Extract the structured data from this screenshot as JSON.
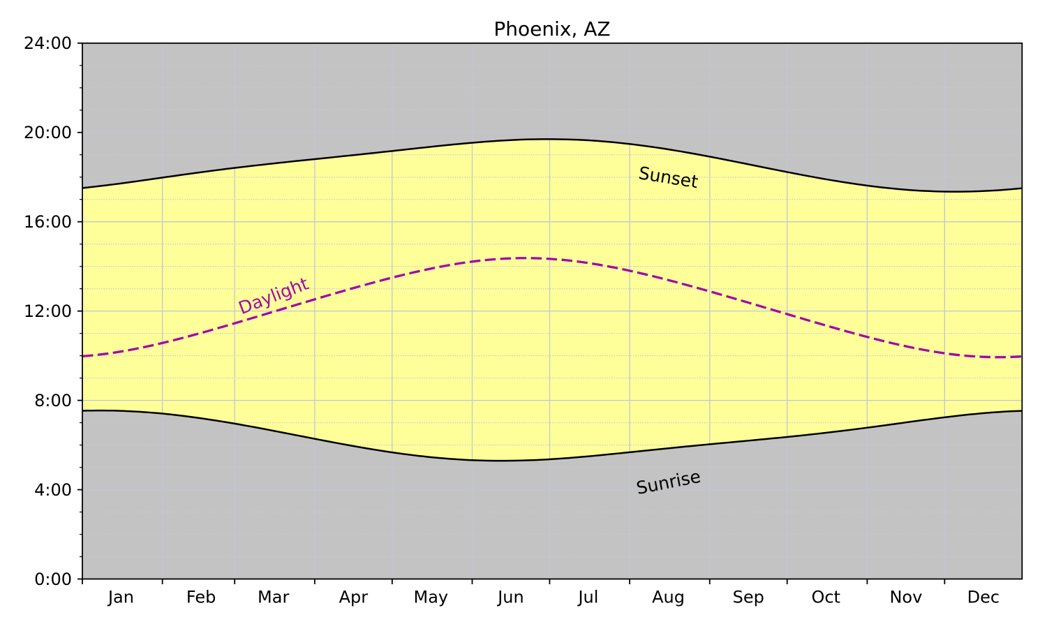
{
  "title": "Phoenix, AZ",
  "chart_data": {
    "type": "area",
    "title": "Phoenix, AZ",
    "x_axis": {
      "unit": "day_of_year_index",
      "range": [
        0,
        364
      ],
      "month_labels": [
        "Jan",
        "Feb",
        "Mar",
        "Apr",
        "May",
        "Jun",
        "Jul",
        "Aug",
        "Sep",
        "Oct",
        "Nov",
        "Dec"
      ],
      "month_start_days": [
        0,
        31,
        59,
        90,
        120,
        151,
        181,
        212,
        243,
        273,
        304,
        334
      ],
      "month_label_days": [
        15,
        46,
        74,
        105,
        135,
        166,
        196,
        227,
        258,
        288,
        319,
        349
      ]
    },
    "y_axis": {
      "unit": "hour_of_day",
      "range": [
        0,
        24
      ],
      "major_step": 4,
      "minor_step": 1,
      "tick_labels": [
        "0:00",
        "4:00",
        "8:00",
        "12:00",
        "16:00",
        "20:00",
        "24:00"
      ]
    },
    "grid": {
      "major": "solid",
      "minor": "dotted",
      "on": true
    },
    "legend": "inline-curve-labels",
    "x_days": [
      0,
      2,
      4,
      6,
      8,
      10,
      12,
      14,
      16,
      18,
      20,
      22,
      24,
      26,
      28,
      30,
      32,
      34,
      36,
      38,
      40,
      42,
      44,
      46,
      48,
      50,
      52,
      54,
      56,
      58,
      60,
      62,
      64,
      66,
      68,
      70,
      72,
      74,
      76,
      78,
      80,
      82,
      84,
      86,
      88,
      90,
      92,
      94,
      96,
      98,
      100,
      102,
      104,
      106,
      108,
      110,
      112,
      114,
      116,
      118,
      120,
      122,
      124,
      126,
      128,
      130,
      132,
      134,
      136,
      138,
      140,
      142,
      144,
      146,
      148,
      150,
      152,
      154,
      156,
      158,
      160,
      162,
      164,
      166,
      168,
      170,
      172,
      174,
      176,
      178,
      180,
      182,
      184,
      186,
      188,
      190,
      192,
      194,
      196,
      198,
      200,
      202,
      204,
      206,
      208,
      210,
      212,
      214,
      216,
      218,
      220,
      222,
      224,
      226,
      228,
      230,
      232,
      234,
      236,
      238,
      240,
      242,
      244,
      246,
      248,
      250,
      252,
      254,
      256,
      258,
      260,
      262,
      264,
      266,
      268,
      270,
      272,
      274,
      276,
      278,
      280,
      282,
      284,
      286,
      288,
      290,
      292,
      294,
      296,
      298,
      300,
      302,
      304,
      306,
      308,
      310,
      312,
      314,
      316,
      318,
      320,
      322,
      324,
      326,
      328,
      330,
      332,
      334,
      336,
      338,
      340,
      342,
      344,
      346,
      348,
      350,
      352,
      354,
      356,
      358,
      360,
      362,
      364
    ],
    "series": [
      {
        "name": "Sunrise",
        "color": "#000000",
        "line_style": "solid",
        "values": [
          7.535,
          7.541,
          7.544,
          7.546,
          7.546,
          7.544,
          7.54,
          7.534,
          7.526,
          7.516,
          7.504,
          7.491,
          7.475,
          7.458,
          7.439,
          7.419,
          7.396,
          7.373,
          7.347,
          7.32,
          7.292,
          7.262,
          7.231,
          7.198,
          7.164,
          7.129,
          7.093,
          7.056,
          7.018,
          6.979,
          6.939,
          6.898,
          6.856,
          6.814,
          6.771,
          6.728,
          6.684,
          6.64,
          6.595,
          6.55,
          6.505,
          6.46,
          6.415,
          6.369,
          6.324,
          6.279,
          6.235,
          6.19,
          6.146,
          6.102,
          6.059,
          6.017,
          5.975,
          5.934,
          5.894,
          5.854,
          5.815,
          5.778,
          5.741,
          5.706,
          5.671,
          5.638,
          5.606,
          5.576,
          5.547,
          5.519,
          5.493,
          5.468,
          5.445,
          5.423,
          5.403,
          5.384,
          5.368,
          5.352,
          5.339,
          5.328,
          5.318,
          5.309,
          5.303,
          5.298,
          5.295,
          5.294,
          5.295,
          5.297,
          5.301,
          5.306,
          5.313,
          5.321,
          5.331,
          5.342,
          5.355,
          5.369,
          5.384,
          5.4,
          5.417,
          5.435,
          5.454,
          5.474,
          5.495,
          5.516,
          5.538,
          5.56,
          5.583,
          5.606,
          5.629,
          5.653,
          5.677,
          5.7,
          5.724,
          5.748,
          5.772,
          5.796,
          5.819,
          5.843,
          5.866,
          5.889,
          5.912,
          5.935,
          5.957,
          5.98,
          6.002,
          6.024,
          6.046,
          6.067,
          6.089,
          6.11,
          6.132,
          6.153,
          6.175,
          6.196,
          6.218,
          6.239,
          6.261,
          6.283,
          6.306,
          6.328,
          6.351,
          6.374,
          6.398,
          6.422,
          6.446,
          6.471,
          6.497,
          6.522,
          6.549,
          6.576,
          6.603,
          6.631,
          6.659,
          6.688,
          6.718,
          6.747,
          6.778,
          6.808,
          6.839,
          6.87,
          6.902,
          6.933,
          6.965,
          6.997,
          7.029,
          7.06,
          7.092,
          7.123,
          7.153,
          7.183,
          7.213,
          7.242,
          7.27,
          7.297,
          7.323,
          7.349,
          7.373,
          7.395,
          7.417,
          7.437,
          7.456,
          7.472,
          7.488,
          7.502,
          7.513,
          7.524,
          7.532
        ]
      },
      {
        "name": "Sunset",
        "color": "#000000",
        "line_style": "solid",
        "values": [
          17.512,
          17.536,
          17.561,
          17.588,
          17.615,
          17.644,
          17.673,
          17.703,
          17.734,
          17.765,
          17.797,
          17.829,
          17.862,
          17.895,
          17.928,
          17.961,
          17.994,
          18.027,
          18.059,
          18.092,
          18.124,
          18.156,
          18.188,
          18.219,
          18.25,
          18.28,
          18.31,
          18.34,
          18.369,
          18.397,
          18.425,
          18.453,
          18.48,
          18.507,
          18.533,
          18.559,
          18.585,
          18.61,
          18.635,
          18.66,
          18.685,
          18.709,
          18.733,
          18.757,
          18.781,
          18.805,
          18.828,
          18.852,
          18.876,
          18.9,
          18.924,
          18.948,
          18.972,
          18.996,
          19.02,
          19.045,
          19.07,
          19.094,
          19.119,
          19.144,
          19.169,
          19.194,
          19.22,
          19.245,
          19.27,
          19.295,
          19.32,
          19.345,
          19.369,
          19.393,
          19.417,
          19.44,
          19.463,
          19.485,
          19.507,
          19.528,
          19.548,
          19.567,
          19.585,
          19.602,
          19.618,
          19.632,
          19.646,
          19.658,
          19.669,
          19.678,
          19.686,
          19.692,
          19.696,
          19.699,
          19.7,
          19.7,
          19.697,
          19.693,
          19.688,
          19.68,
          19.671,
          19.66,
          19.647,
          19.632,
          19.616,
          19.598,
          19.578,
          19.557,
          19.533,
          19.509,
          19.483,
          19.455,
          19.426,
          19.395,
          19.363,
          19.33,
          19.296,
          19.26,
          19.223,
          19.185,
          19.146,
          19.106,
          19.065,
          19.023,
          18.981,
          18.937,
          18.893,
          18.849,
          18.804,
          18.758,
          18.713,
          18.666,
          18.62,
          18.573,
          18.527,
          18.48,
          18.433,
          18.387,
          18.341,
          18.295,
          18.249,
          18.204,
          18.159,
          18.114,
          18.071,
          18.028,
          17.986,
          17.944,
          17.904,
          17.864,
          17.826,
          17.788,
          17.752,
          17.717,
          17.683,
          17.651,
          17.62,
          17.59,
          17.562,
          17.535,
          17.51,
          17.486,
          17.465,
          17.445,
          17.426,
          17.41,
          17.395,
          17.382,
          17.372,
          17.363,
          17.356,
          17.35,
          17.347,
          17.346,
          17.347,
          17.35,
          17.354,
          17.361,
          17.37,
          17.38,
          17.392,
          17.406,
          17.422,
          17.439,
          17.458,
          17.479,
          17.501
        ]
      },
      {
        "name": "Daylight",
        "color": "#a108a8",
        "line_style": "dashed",
        "values": [
          9.977,
          9.995,
          10.017,
          10.042,
          10.069,
          10.1,
          10.133,
          10.17,
          10.208,
          10.249,
          10.293,
          10.339,
          10.387,
          10.437,
          10.488,
          10.542,
          10.597,
          10.654,
          10.712,
          10.772,
          10.832,
          10.894,
          10.957,
          11.021,
          11.085,
          11.151,
          11.217,
          11.284,
          11.351,
          11.418,
          11.487,
          11.555,
          11.624,
          11.693,
          11.762,
          11.832,
          11.901,
          11.971,
          12.04,
          12.11,
          12.179,
          12.249,
          12.318,
          12.388,
          12.457,
          12.525,
          12.594,
          12.662,
          12.73,
          12.797,
          12.864,
          12.931,
          12.997,
          13.062,
          13.127,
          13.191,
          13.254,
          13.317,
          13.378,
          13.438,
          13.498,
          13.556,
          13.613,
          13.669,
          13.723,
          13.776,
          13.827,
          13.877,
          13.924,
          13.97,
          14.014,
          14.056,
          14.096,
          14.133,
          14.168,
          14.2,
          14.23,
          14.257,
          14.282,
          14.303,
          14.322,
          14.338,
          14.351,
          14.361,
          14.368,
          14.372,
          14.373,
          14.37,
          14.365,
          14.357,
          14.345,
          14.331,
          14.314,
          14.293,
          14.27,
          14.245,
          14.216,
          14.185,
          14.152,
          14.116,
          14.078,
          14.037,
          13.995,
          13.951,
          13.904,
          13.856,
          13.806,
          13.755,
          13.702,
          13.647,
          13.592,
          13.535,
          13.476,
          13.417,
          13.357,
          13.296,
          13.234,
          13.171,
          13.108,
          13.044,
          12.979,
          12.914,
          12.848,
          12.782,
          12.715,
          12.648,
          12.581,
          12.513,
          12.445,
          12.377,
          12.309,
          12.241,
          12.172,
          12.104,
          12.035,
          11.966,
          11.898,
          11.829,
          11.761,
          11.693,
          11.624,
          11.557,
          11.489,
          11.422,
          11.355,
          11.289,
          11.223,
          11.157,
          11.093,
          11.029,
          10.965,
          10.903,
          10.842,
          10.782,
          10.722,
          10.665,
          10.608,
          10.553,
          10.5,
          10.448,
          10.398,
          10.35,
          10.304,
          10.26,
          10.218,
          10.179,
          10.143,
          10.109,
          10.077,
          10.049,
          10.024,
          10.001,
          9.982,
          9.966,
          9.953,
          9.943,
          9.937,
          9.934,
          9.934,
          9.938,
          9.945,
          9.955,
          9.969
        ]
      }
    ],
    "fills": {
      "day": "#ffff99",
      "night": "#c3c3c3"
    },
    "annotations": [
      {
        "text": "Sunset",
        "day": 227,
        "hour": 18.0,
        "rotation_deg": 9,
        "color": "#000000"
      },
      {
        "text": "Sunrise",
        "day": 227,
        "hour": 4.35,
        "rotation_deg": -11,
        "color": "#000000"
      },
      {
        "text": "Daylight",
        "day": 74,
        "hour": 12.7,
        "rotation_deg": -21,
        "color": "#a108a8"
      }
    ],
    "colors": {
      "grid_major": "#c2c6d4",
      "grid_minor": "#c6cad6",
      "axis": "#000000",
      "text": "#000000",
      "background": "#ffffff"
    }
  }
}
